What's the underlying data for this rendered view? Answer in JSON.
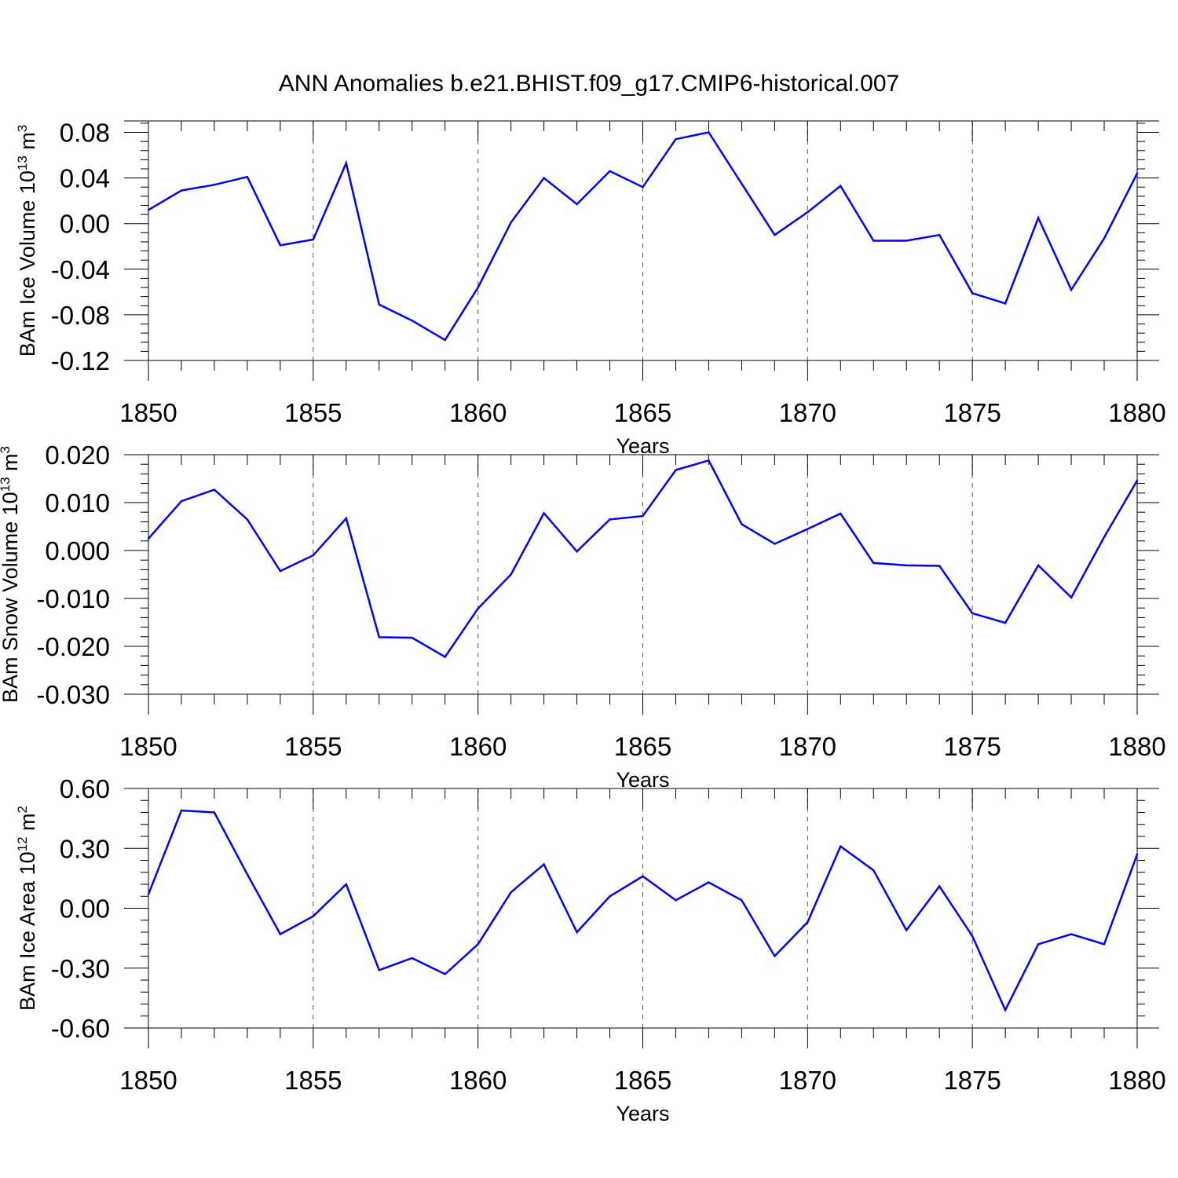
{
  "title": "ANN Anomalies b.e21.BHIST.f09_g17.CMIP6-historical.007",
  "chart_data": [
    {
      "type": "line",
      "title": "",
      "ylabel": {
        "base": "BAm Ice Volume 10",
        "exp1": "13",
        "mid": " m",
        "exp2": "3"
      },
      "xlabel": "Years",
      "xlim": [
        1850,
        1880
      ],
      "ylim": [
        -0.12,
        0.09
      ],
      "yticks": [
        -0.12,
        -0.08,
        -0.04,
        0.0,
        0.04,
        0.08
      ],
      "ytick_labels": [
        "-0.12",
        "-0.08",
        "-0.04",
        "0.00",
        "0.04",
        "0.08"
      ],
      "ydecimals": 2,
      "yminor": 0.008,
      "hline": 0.09,
      "xticks": [
        1850,
        1855,
        1860,
        1865,
        1870,
        1875,
        1880
      ],
      "xtick_labels": [
        "1850",
        "1855",
        "1860",
        "1865",
        "1870",
        "1875",
        "1880"
      ],
      "grid": "vertical dashed at major x ticks",
      "series": [
        {
          "color": "#0000ff",
          "x": [
            1850,
            1851,
            1852,
            1853,
            1854,
            1855,
            1856,
            1857,
            1858,
            1859,
            1860,
            1861,
            1862,
            1863,
            1864,
            1865,
            1866,
            1867,
            1868,
            1869,
            1870,
            1871,
            1872,
            1873,
            1874,
            1875,
            1876,
            1877,
            1878,
            1879,
            1880
          ],
          "values": [
            0.012,
            0.029,
            0.034,
            0.041,
            -0.019,
            -0.014,
            0.053,
            -0.071,
            -0.085,
            -0.102,
            -0.056,
            0.001,
            0.04,
            0.017,
            0.046,
            0.032,
            0.074,
            0.08,
            0.035,
            -0.01,
            0.01,
            0.033,
            -0.015,
            -0.015,
            -0.01,
            -0.061,
            -0.07,
            0.005,
            -0.058,
            -0.013,
            0.044
          ]
        }
      ]
    },
    {
      "type": "line",
      "title": "",
      "ylabel": {
        "base": "BAm Snow Volume 10",
        "exp1": "13",
        "mid": " m",
        "exp2": "3"
      },
      "xlabel": "Years",
      "xlim": [
        1850,
        1880
      ],
      "ylim": [
        -0.03,
        0.02
      ],
      "yticks": [
        -0.03,
        -0.02,
        -0.01,
        0.0,
        0.01,
        0.02
      ],
      "ytick_labels": [
        "-0.030",
        "-0.020",
        "-0.010",
        "0.000",
        "0.010",
        "0.020"
      ],
      "ydecimals": 3,
      "yminor": 0.002,
      "hline": 0.02,
      "xticks": [
        1850,
        1855,
        1860,
        1865,
        1870,
        1875,
        1880
      ],
      "xtick_labels": [
        "1850",
        "1855",
        "1860",
        "1865",
        "1870",
        "1875",
        "1880"
      ],
      "grid": "vertical dashed at major x ticks",
      "series": [
        {
          "color": "#0000ff",
          "x": [
            1850,
            1851,
            1852,
            1853,
            1854,
            1855,
            1856,
            1857,
            1858,
            1859,
            1860,
            1861,
            1862,
            1863,
            1864,
            1865,
            1866,
            1867,
            1868,
            1869,
            1870,
            1871,
            1872,
            1873,
            1874,
            1875,
            1876,
            1877,
            1878,
            1879,
            1880
          ],
          "values": [
            0.0025,
            0.0103,
            0.0127,
            0.0065,
            -0.0043,
            -0.001,
            0.0067,
            -0.0181,
            -0.0182,
            -0.0222,
            -0.0121,
            -0.005,
            0.0078,
            -0.0002,
            0.0065,
            0.0072,
            0.0168,
            0.0188,
            0.0055,
            0.0014,
            0.0045,
            0.0077,
            -0.0026,
            -0.0031,
            -0.0032,
            -0.0131,
            -0.0151,
            -0.0031,
            -0.0098,
            0.0028,
            0.0146
          ]
        }
      ]
    },
    {
      "type": "line",
      "title": "",
      "ylabel": {
        "base": "BAm Ice Area 10",
        "exp1": "12",
        "mid": " m",
        "exp2": "2"
      },
      "xlabel": "Years",
      "xlim": [
        1850,
        1880
      ],
      "ylim": [
        -0.6,
        0.6
      ],
      "yticks": [
        -0.6,
        -0.3,
        0.0,
        0.3,
        0.6
      ],
      "ytick_labels": [
        "-0.60",
        "-0.30",
        "0.00",
        "0.30",
        "0.60"
      ],
      "ydecimals": 2,
      "yminor": 0.06,
      "hline": 0.6,
      "xticks": [
        1850,
        1855,
        1860,
        1865,
        1870,
        1875,
        1880
      ],
      "xtick_labels": [
        "1850",
        "1855",
        "1860",
        "1865",
        "1870",
        "1875",
        "1880"
      ],
      "grid": "vertical dashed at major x ticks",
      "series": [
        {
          "color": "#0000ff",
          "x": [
            1850,
            1851,
            1852,
            1853,
            1854,
            1855,
            1856,
            1857,
            1858,
            1859,
            1860,
            1861,
            1862,
            1863,
            1864,
            1865,
            1866,
            1867,
            1868,
            1869,
            1870,
            1871,
            1872,
            1873,
            1874,
            1875,
            1876,
            1877,
            1878,
            1879,
            1880
          ],
          "values": [
            0.07,
            0.49,
            0.48,
            0.17,
            -0.13,
            -0.04,
            0.12,
            -0.31,
            -0.25,
            -0.33,
            -0.18,
            0.08,
            0.22,
            -0.12,
            0.06,
            0.16,
            0.04,
            0.13,
            0.04,
            -0.24,
            -0.07,
            0.31,
            0.19,
            -0.11,
            0.11,
            -0.14,
            -0.51,
            -0.18,
            -0.13,
            -0.18,
            0.27
          ]
        }
      ]
    }
  ]
}
